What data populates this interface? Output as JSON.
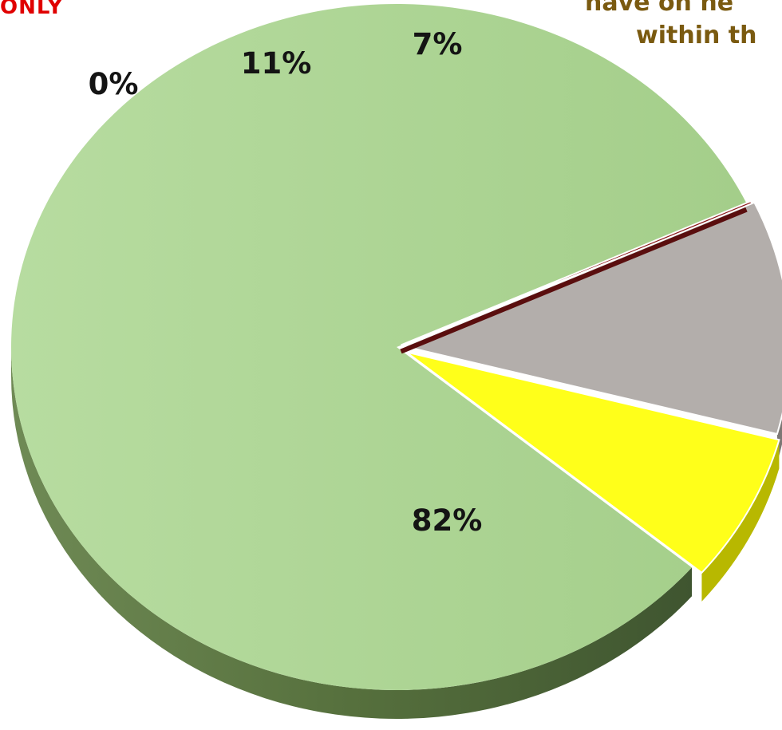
{
  "text_fragments": {
    "top_left": "ONLY",
    "top_right_line1": "have on ne",
    "top_right_line2": "within th"
  },
  "chart_data": {
    "type": "pie",
    "style": "3d-exploded",
    "title": "",
    "legend": "none",
    "slices": [
      {
        "label": "82%",
        "value": 82,
        "color": "#a9d18e",
        "side_color": "#56703d"
      },
      {
        "label": "0%",
        "value": 0,
        "color": "#8b1a1a",
        "side_color": "#5a0e0e"
      },
      {
        "label": "11%",
        "value": 11,
        "color": "#b3aeab",
        "side_color": "#7d7875"
      },
      {
        "label": "7%",
        "value": 7,
        "color": "#ffff1a",
        "side_color": "#b8b800"
      }
    ]
  }
}
